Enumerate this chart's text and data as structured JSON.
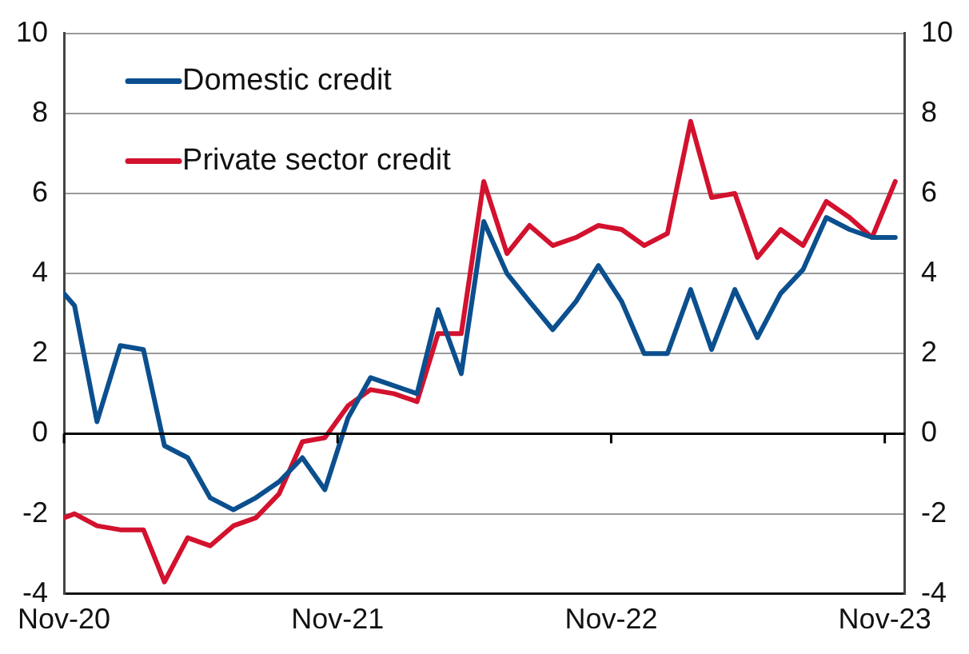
{
  "chart_data": {
    "type": "line",
    "x": [
      "2020-11-01",
      "2020-11-15",
      "2020-12-15",
      "2021-01-15",
      "2021-02-15",
      "2021-03-15",
      "2021-04-15",
      "2021-05-15",
      "2021-06-15",
      "2021-07-15",
      "2021-08-15",
      "2021-09-15",
      "2021-10-15",
      "2021-11-15",
      "2021-12-15",
      "2022-01-15",
      "2022-02-15",
      "2022-03-15",
      "2022-04-15",
      "2022-05-15",
      "2022-06-15",
      "2022-07-15",
      "2022-08-15",
      "2022-09-15",
      "2022-10-15",
      "2022-11-15",
      "2022-12-15",
      "2023-01-15",
      "2023-02-15",
      "2023-03-15",
      "2023-04-15",
      "2023-05-15",
      "2023-06-15",
      "2023-07-15",
      "2023-08-15",
      "2023-09-15",
      "2023-10-15",
      "2023-11-15"
    ],
    "series": [
      {
        "name": "Domestic credit",
        "color": "#0b4f8e",
        "values": [
          3.5,
          3.2,
          0.3,
          2.2,
          2.1,
          -0.3,
          -0.6,
          -1.6,
          -1.9,
          -1.6,
          -1.2,
          -0.6,
          -1.4,
          0.4,
          1.4,
          1.2,
          1.0,
          3.1,
          1.5,
          5.3,
          4.0,
          3.3,
          2.6,
          3.3,
          4.2,
          3.3,
          2.0,
          2.0,
          3.6,
          2.1,
          3.6,
          2.4,
          3.5,
          4.1,
          5.4,
          5.1,
          4.9,
          4.9
        ]
      },
      {
        "name": "Private sector credit",
        "color": "#d2122e",
        "values": [
          -2.1,
          -2.0,
          -2.3,
          -2.4,
          -2.4,
          -3.7,
          -2.6,
          -2.8,
          -2.3,
          -2.1,
          -1.5,
          -0.2,
          -0.1,
          0.7,
          1.1,
          1.0,
          0.8,
          2.5,
          2.5,
          6.3,
          4.5,
          5.2,
          4.7,
          4.9,
          5.2,
          5.1,
          4.7,
          5.0,
          7.8,
          5.9,
          6.0,
          4.4,
          5.1,
          4.7,
          5.8,
          5.4,
          4.9,
          6.3
        ]
      }
    ],
    "xlim": [
      "2020-11-01",
      "2023-11-28"
    ],
    "xticks": [
      {
        "value": "2020-11-01",
        "label": "Nov-20"
      },
      {
        "value": "2021-11-01",
        "label": "Nov-21"
      },
      {
        "value": "2022-11-01",
        "label": "Nov-22"
      },
      {
        "value": "2023-11-01",
        "label": "Nov-23"
      }
    ],
    "ylim": [
      -4,
      10
    ],
    "yticks": [
      -4,
      -2,
      0,
      2,
      4,
      6,
      8,
      10
    ],
    "y2lim": [
      -4,
      10
    ],
    "y2ticks": [
      -4,
      -2,
      0,
      2,
      4,
      6,
      8,
      10
    ],
    "ref_lines": [
      {
        "axis": "y",
        "value": 0,
        "color": "#000000"
      }
    ],
    "grid": "y",
    "legend": "top left",
    "marker": "none",
    "line_style": "solid"
  }
}
